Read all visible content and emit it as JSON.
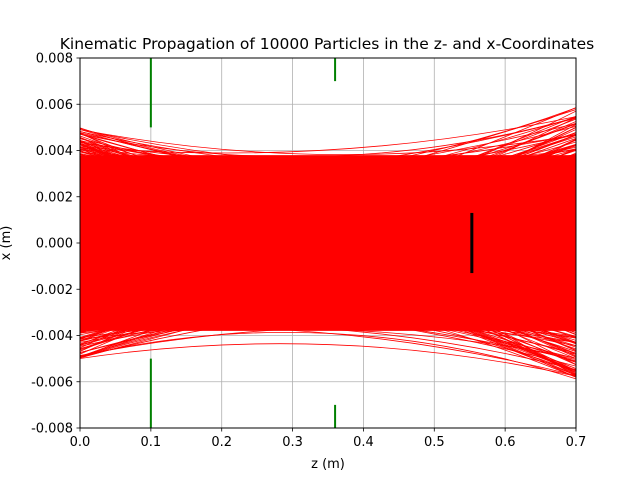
{
  "chart_data": {
    "type": "line",
    "title": "Kinematic Propagation of 10000 Particles in the z- and x-Coordinates",
    "xlabel": "z (m)",
    "ylabel": "x (m)",
    "xlim": [
      0.0,
      0.7
    ],
    "ylim": [
      -0.008,
      0.008
    ],
    "grid": true,
    "x_ticks": [
      "0.0",
      "0.1",
      "0.2",
      "0.3",
      "0.4",
      "0.5",
      "0.6",
      "0.7"
    ],
    "y_ticks": [
      "-0.008",
      "-0.006",
      "-0.004",
      "-0.002",
      "0.000",
      "0.002",
      "0.004",
      "0.006",
      "0.008"
    ],
    "particles": {
      "count_drawn": 360,
      "color": "#ff0000",
      "z_start": 0.0,
      "z_end": 0.7,
      "x_start_range": [
        -0.005,
        0.005
      ],
      "x_end_range": [
        -0.0059,
        0.0059
      ]
    },
    "apertures": [
      {
        "z": 0.1,
        "x_inner": 0.005,
        "x_outer": 0.008,
        "color": "#008000"
      },
      {
        "z": 0.36,
        "x_inner": 0.007,
        "x_outer": 0.008,
        "color": "#008000"
      }
    ],
    "detector": {
      "z": 0.553,
      "x_min": -0.0013,
      "x_max": 0.0013,
      "color": "#000000"
    }
  }
}
